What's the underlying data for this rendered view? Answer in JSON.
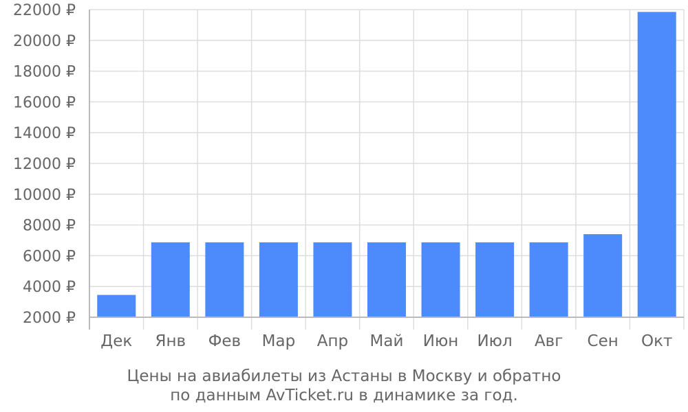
{
  "chart_data": {
    "type": "bar",
    "categories": [
      "Дек",
      "Янв",
      "Фев",
      "Мар",
      "Апр",
      "Май",
      "Июн",
      "Июл",
      "Авг",
      "Сен",
      "Окт"
    ],
    "values": [
      3450,
      6870,
      6870,
      6870,
      6870,
      6870,
      6870,
      6870,
      6870,
      7400,
      21850
    ],
    "ylim": [
      2000,
      22000
    ],
    "yticks": [
      2000,
      4000,
      6000,
      8000,
      10000,
      12000,
      14000,
      16000,
      18000,
      20000,
      22000
    ],
    "ytick_labels": [
      "2000 ₽",
      "4000 ₽",
      "6000 ₽",
      "8000 ₽",
      "10000 ₽",
      "12000 ₽",
      "14000 ₽",
      "16000 ₽",
      "18000 ₽",
      "20000 ₽",
      "22000 ₽"
    ],
    "grid": true,
    "bar_color": "#4d8afc",
    "grid_color": "#dddddd",
    "axis_color": "#bbbbbb",
    "label_color": "#666666"
  },
  "caption": {
    "line1": "Цены на авиабилеты из Астаны в Москву и обратно",
    "line2": "по данным AvTicket.ru в динамике за год."
  }
}
